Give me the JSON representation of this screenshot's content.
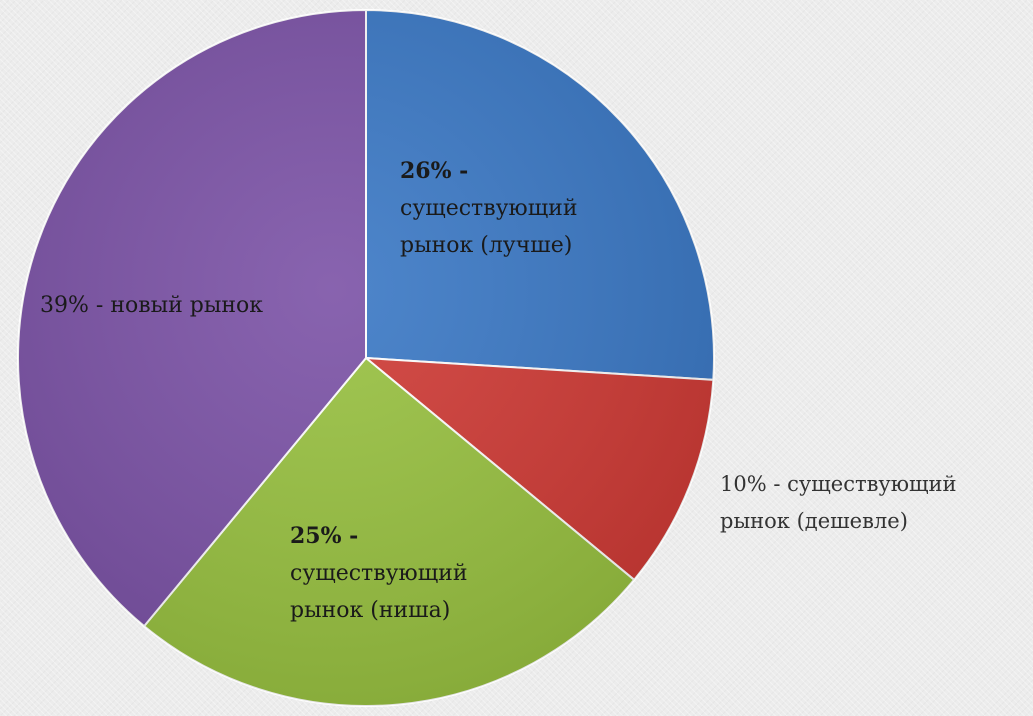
{
  "chart_data": {
    "type": "pie",
    "title": "",
    "slices": [
      {
        "pct_label": "26% -",
        "line1": "существующий",
        "line2": "рынок (лучше)",
        "value": 26,
        "color": "#3a78c5"
      },
      {
        "pct_label": "10% - существующий",
        "line1": "рынок (дешевле)",
        "value": 10,
        "color": "#cf3a35"
      },
      {
        "pct_label": "25% -",
        "line1": "существующий",
        "line2": "рынок (ниша)",
        "value": 25,
        "color": "#98c140"
      },
      {
        "pct_label": "39% - новый рынок",
        "value": 39,
        "color": "#7b52a6"
      }
    ]
  }
}
